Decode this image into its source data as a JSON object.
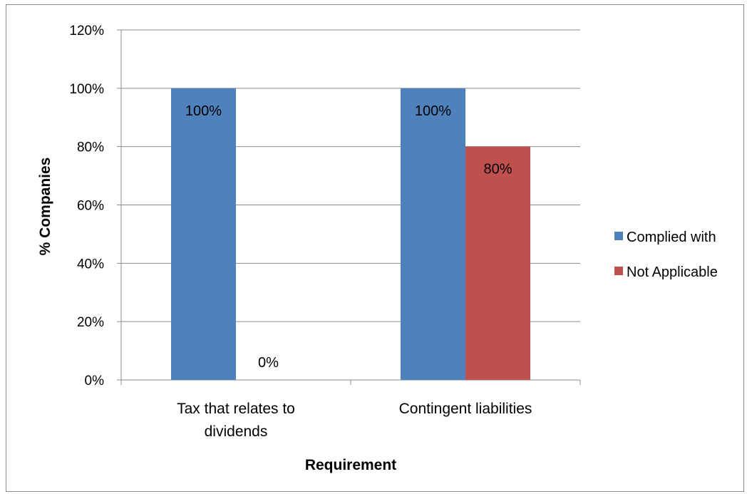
{
  "chart_data": {
    "type": "bar",
    "categories": [
      [
        "Tax that relates to",
        "dividends"
      ],
      [
        "Contingent liabilities"
      ]
    ],
    "series": [
      {
        "name": "Complied with",
        "values": [
          100,
          100
        ],
        "labels": [
          "100%",
          "100%"
        ],
        "color": "#4f81bd"
      },
      {
        "name": "Not Applicable",
        "values": [
          0,
          80
        ],
        "labels": [
          "0%",
          "80%"
        ],
        "color": "#c0504d"
      }
    ],
    "xlabel": "Requirement",
    "ylabel": "% Companies",
    "ylim": [
      0,
      120
    ],
    "yticks": [
      "0%",
      "20%",
      "40%",
      "60%",
      "80%",
      "100%",
      "120%"
    ],
    "grid": true,
    "legend_position": "right",
    "colors": {
      "gridline": "#8c8c8c",
      "frame": "#8c8c8c"
    }
  }
}
